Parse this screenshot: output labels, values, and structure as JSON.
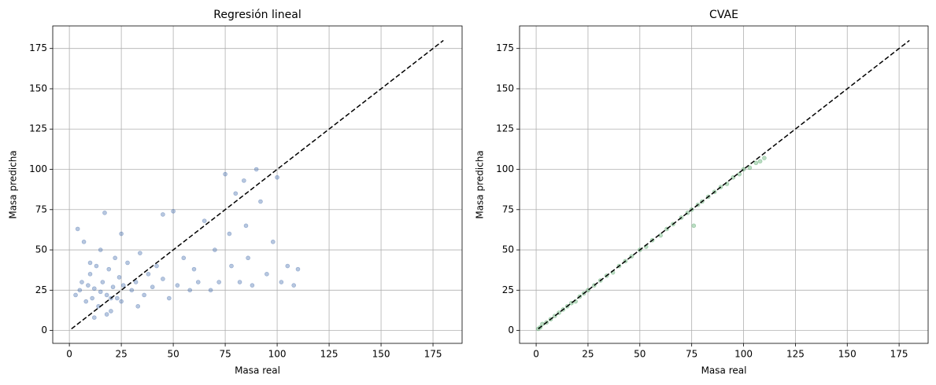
{
  "chart_data": [
    {
      "type": "scatter",
      "title": "Regresión lineal",
      "x_label": "Masa real",
      "y_label": "Masa predicha",
      "color": "#4c72b0",
      "grid": true,
      "xlim": [
        -8,
        189
      ],
      "ylim": [
        -8,
        189
      ],
      "xticks": [
        0,
        25,
        50,
        75,
        100,
        125,
        150,
        175
      ],
      "yticks": [
        0,
        25,
        50,
        75,
        100,
        125,
        150,
        175
      ],
      "x": [
        3,
        5,
        6,
        8,
        9,
        10,
        11,
        12,
        13,
        14,
        15,
        16,
        17,
        18,
        19,
        20,
        21,
        22,
        23,
        24,
        25,
        26,
        28,
        30,
        32,
        34,
        36,
        38,
        40,
        42,
        45,
        48,
        50,
        52,
        55,
        58,
        60,
        62,
        65,
        68,
        70,
        72,
        75,
        77,
        78,
        80,
        82,
        84,
        85,
        86,
        88,
        90,
        92,
        95,
        98,
        100,
        102,
        105,
        108,
        110,
        4,
        7,
        12,
        18,
        25,
        33,
        45,
        15,
        20,
        10
      ],
      "values": [
        22,
        25,
        30,
        18,
        28,
        35,
        20,
        26,
        40,
        15,
        24,
        30,
        73,
        22,
        38,
        12,
        27,
        45,
        20,
        33,
        18,
        28,
        42,
        25,
        30,
        48,
        22,
        35,
        27,
        40,
        32,
        20,
        74,
        28,
        45,
        25,
        38,
        30,
        68,
        25,
        50,
        30,
        97,
        60,
        40,
        85,
        30,
        93,
        65,
        45,
        28,
        100,
        80,
        35,
        55,
        95,
        30,
        40,
        28,
        38,
        63,
        55,
        8,
        10,
        60,
        15,
        72,
        50,
        20,
        42
      ],
      "reference_line": {
        "x": [
          1,
          180
        ],
        "y": [
          1,
          180
        ]
      }
    },
    {
      "type": "scatter",
      "title": "CVAE",
      "x_label": "Masa real",
      "y_label": "Masa predicha",
      "color": "#55a868",
      "grid": true,
      "xlim": [
        -8,
        189
      ],
      "ylim": [
        -8,
        189
      ],
      "xticks": [
        0,
        25,
        50,
        75,
        100,
        125,
        150,
        175
      ],
      "yticks": [
        0,
        25,
        50,
        75,
        100,
        125,
        150,
        175
      ],
      "x": [
        1,
        2,
        3,
        5,
        7,
        9,
        11,
        13,
        15,
        17,
        19,
        21,
        23,
        25,
        28,
        31,
        34,
        37,
        40,
        43,
        46,
        50,
        53,
        56,
        60,
        63,
        66,
        70,
        73,
        75,
        76,
        78,
        80,
        83,
        86,
        89,
        92,
        95,
        98,
        100,
        103,
        106,
        108,
        110
      ],
      "values": [
        1,
        2,
        4,
        5,
        7,
        9,
        11,
        13,
        15,
        17,
        18,
        21,
        23,
        25,
        28,
        31,
        34,
        36,
        40,
        43,
        46,
        50,
        52,
        56,
        59,
        63,
        66,
        70,
        73,
        75,
        65,
        78,
        80,
        83,
        86,
        89,
        91,
        95,
        97,
        100,
        101,
        104,
        105,
        107
      ],
      "reference_line": {
        "x": [
          1,
          180
        ],
        "y": [
          1,
          180
        ]
      }
    }
  ]
}
